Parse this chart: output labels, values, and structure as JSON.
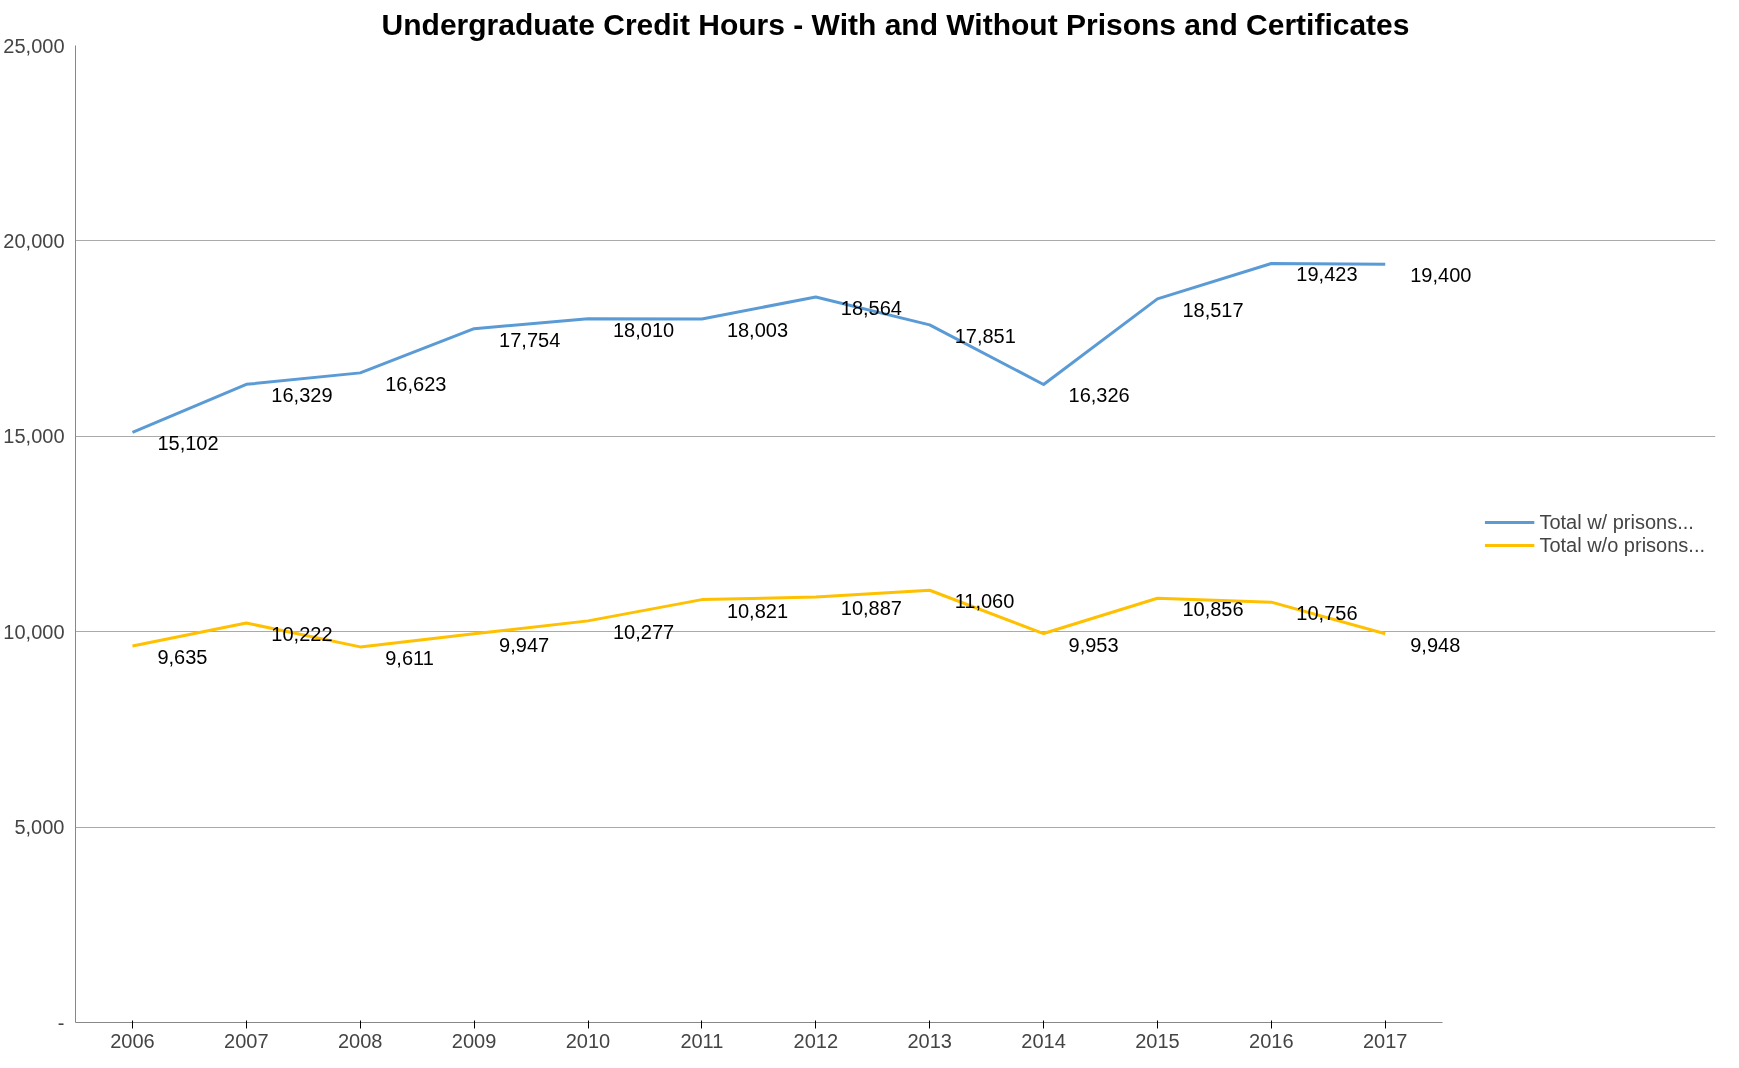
{
  "chart_data": {
    "type": "line",
    "title": "Undergraduate Credit Hours - With and Without Prisons and Certificates",
    "categories": [
      "2006",
      "2007",
      "2008",
      "2009",
      "2010",
      "2011",
      "2012",
      "2013",
      "2014",
      "2015",
      "2016",
      "2017"
    ],
    "series": [
      {
        "name": "Total w/ prisons...",
        "color": "#5b9bd5",
        "values": [
          15102,
          16329,
          16623,
          17754,
          18010,
          18003,
          18564,
          17851,
          16326,
          18517,
          19423,
          19400
        ],
        "value_labels": [
          "15,102",
          "16,329",
          "16,623",
          "17,754",
          "18,010",
          "18,003",
          "18,564",
          "17,851",
          "16,326",
          "18,517",
          "19,423",
          "19,400"
        ]
      },
      {
        "name": "Total w/o prisons...",
        "color": "#ffc000",
        "values": [
          9635,
          10222,
          9611,
          9947,
          10277,
          10821,
          10887,
          11060,
          9953,
          10856,
          10756,
          9948
        ],
        "value_labels": [
          "9,635",
          "10,222",
          "9,611",
          "9,947",
          "10,277",
          "10,821",
          "10,887",
          "11,060",
          "9,953",
          "10,856",
          "10,756",
          "9,948"
        ]
      }
    ],
    "ylim": [
      0,
      25000
    ],
    "yticks": [
      {
        "value": 0,
        "label": "-"
      },
      {
        "value": 5000,
        "label": "5,000"
      },
      {
        "value": 10000,
        "label": "10,000"
      },
      {
        "value": 15000,
        "label": "15,000"
      },
      {
        "value": 20000,
        "label": "20,000"
      },
      {
        "value": 25000,
        "label": "25,000"
      }
    ],
    "grid": "y",
    "legend": "right",
    "marker": "none",
    "line_style": "solid"
  }
}
